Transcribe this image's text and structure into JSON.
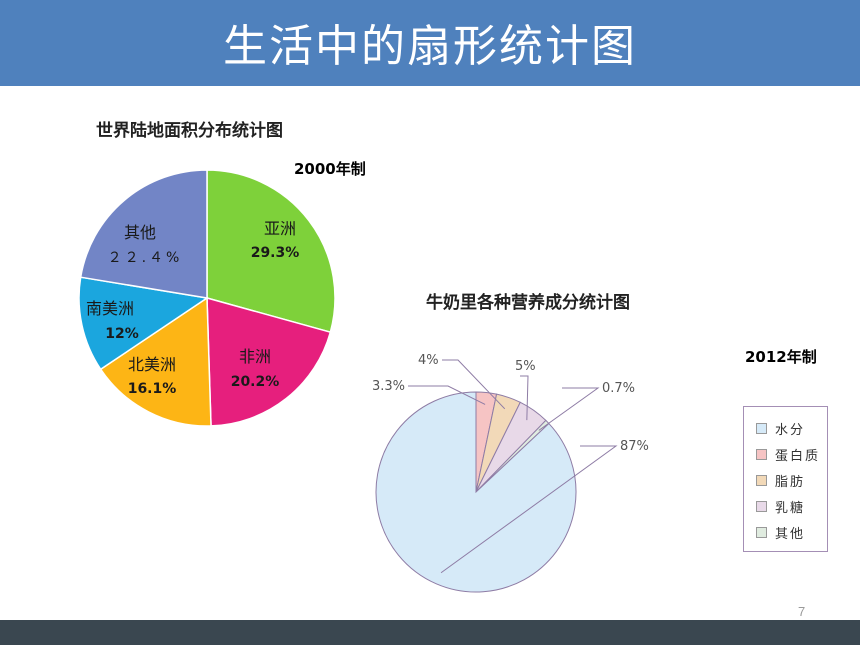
{
  "slide": {
    "title": "生活中的扇形统计图",
    "page_number": "7"
  },
  "colors": {
    "header": "#4f81bd",
    "footer": "#3a4750"
  },
  "chart_data": [
    {
      "type": "pie",
      "title": "世界陆地面积分布统计图",
      "note": "2000年制",
      "slices": [
        {
          "name": "亚洲",
          "value": 29.3,
          "label": "29.3%",
          "color": "#7ed13a"
        },
        {
          "name": "非洲",
          "value": 20.2,
          "label": "20.2%",
          "color": "#e61f7d"
        },
        {
          "name": "北美洲",
          "value": 16.1,
          "label": "16.1%",
          "color": "#fdb515"
        },
        {
          "name": "南美洲",
          "value": 12,
          "label": "12%",
          "color": "#1ba6de"
        },
        {
          "name": "其他",
          "value": 22.4,
          "label": "２２.４%",
          "color": "#7285c6"
        }
      ]
    },
    {
      "type": "pie",
      "title": "牛奶里各种营养成分统计图",
      "note": "2012年制",
      "slices": [
        {
          "name": "水分",
          "value": 87,
          "label": "87%",
          "color": "#d6eaf8"
        },
        {
          "name": "蛋白质",
          "value": 3.3,
          "label": "3.3%",
          "color": "#f6c4c4"
        },
        {
          "name": "脂肪",
          "value": 4,
          "label": "4%",
          "color": "#f2d9b8"
        },
        {
          "name": "乳糖",
          "value": 5,
          "label": "5%",
          "color": "#e8d9e8"
        },
        {
          "name": "其他",
          "value": 0.7,
          "label": "0.7%",
          "color": "#e0ece0"
        }
      ],
      "legend": [
        "水分",
        "蛋白质",
        "脂肪",
        "乳糖",
        "其他"
      ]
    }
  ]
}
